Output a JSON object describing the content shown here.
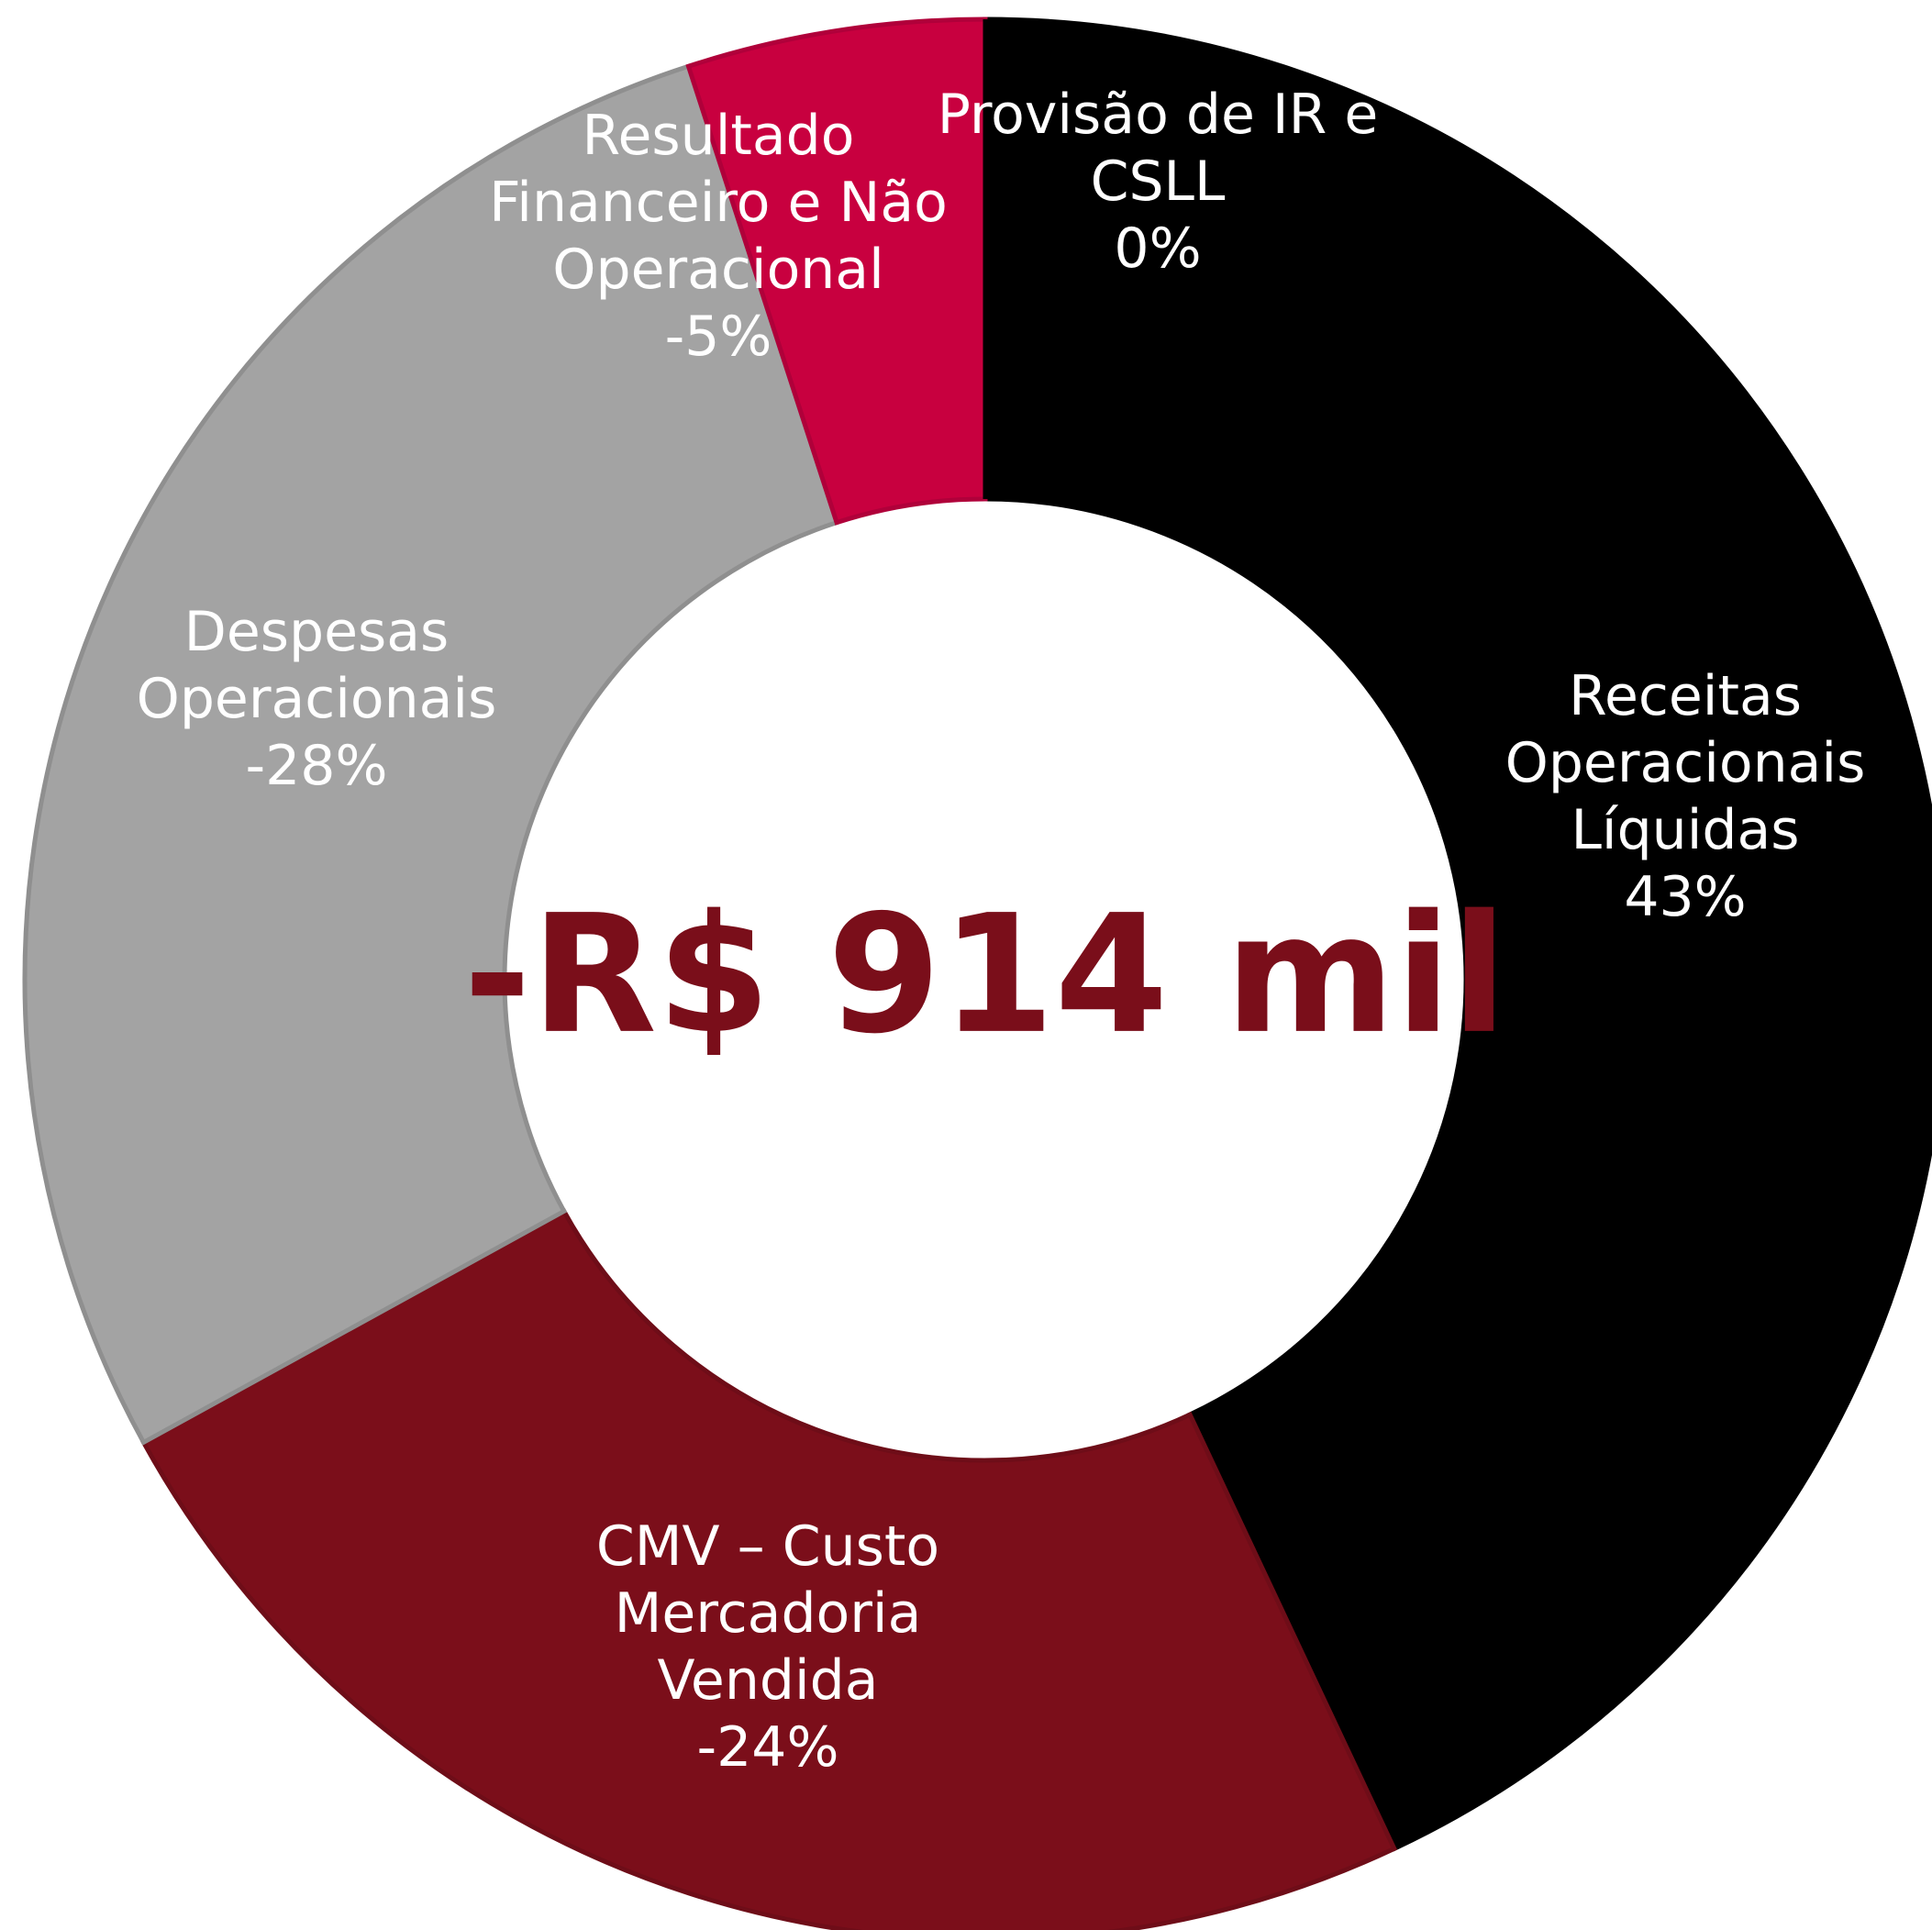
{
  "chart_data": {
    "type": "donut",
    "categories": [
      "Receitas Operacionais Líquidas",
      "CMV – Custo Mercadoria Vendida",
      "Despesas Operacionais",
      "Resultado Financeiro e Não Operacional",
      "Provisão de IR e CSLL"
    ],
    "values": [
      43,
      -24,
      -28,
      -5,
      0
    ],
    "value_labels": [
      "43%",
      "-24%",
      "-28%",
      "-5%",
      "0%"
    ],
    "colors": [
      "#000000",
      "#7b0e1a",
      "#a3a3a3",
      "#c8003f",
      "#000000"
    ],
    "center_label": "-R$ 914 mil"
  }
}
